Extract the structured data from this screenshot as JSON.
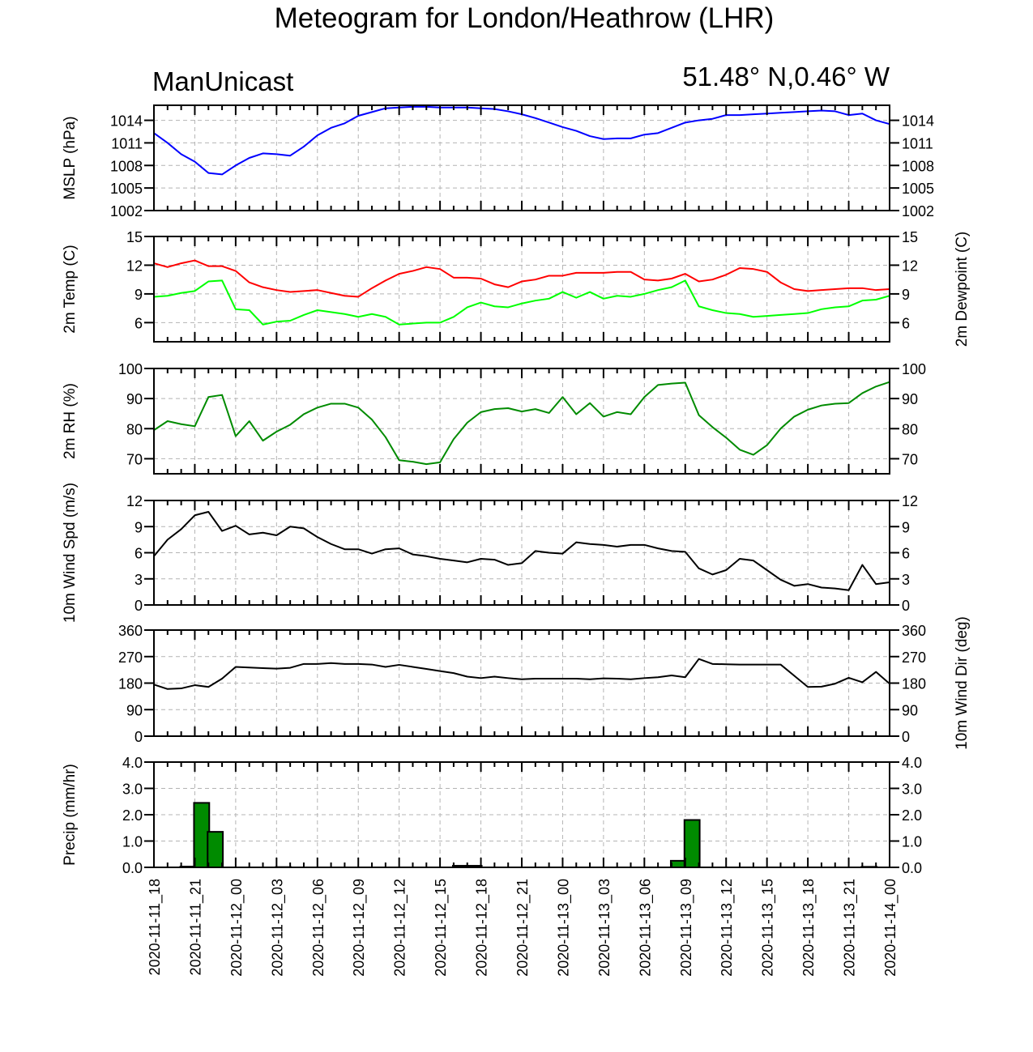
{
  "title": "Meteogram for London/Heathrow (LHR)",
  "left_subtitle": "ManUnicast",
  "right_subtitle": "51.48° N,0.46° W",
  "x_tick_labels": [
    "2020-11-11_18",
    "2020-11-11_21",
    "2020-11-12_00",
    "2020-11-12_03",
    "2020-11-12_06",
    "2020-11-12_09",
    "2020-11-12_12",
    "2020-11-12_15",
    "2020-11-12_18",
    "2020-11-12_21",
    "2020-11-13_00",
    "2020-11-13_03",
    "2020-11-13_06",
    "2020-11-13_09",
    "2020-11-13_12",
    "2020-11-13_15",
    "2020-11-13_18",
    "2020-11-13_21",
    "2020-11-14_00"
  ],
  "colors": {
    "mslp": "#0000ff",
    "temp": "#ff0000",
    "dewpoint": "#00ff00",
    "rh": "#008b00",
    "wind": "#000000",
    "precip": "#008b00"
  },
  "chart_data": [
    {
      "type": "line",
      "ylabel": "MSLP (hPa)",
      "ylim": [
        1002,
        1016
      ],
      "yticks": [
        1002,
        1005,
        1008,
        1011,
        1014
      ],
      "grid": true,
      "x_hours": [
        0,
        1,
        2,
        3,
        4,
        5,
        6,
        7,
        8,
        9,
        10,
        11,
        12,
        13,
        14,
        15,
        16,
        17,
        18,
        19,
        20,
        21,
        22,
        23,
        24,
        25,
        26,
        27,
        28,
        29,
        30,
        31,
        32,
        33,
        34,
        35,
        36,
        37,
        38,
        39,
        40,
        41,
        42,
        43,
        44,
        45,
        46,
        47,
        48,
        49,
        50,
        51,
        52,
        53,
        54
      ],
      "series": [
        {
          "values": [
            1012.3,
            1011.0,
            1009.5,
            1008.5,
            1007.0,
            1006.8,
            1008.0,
            1009.0,
            1009.6,
            1009.5,
            1009.3,
            1010.5,
            1012.0,
            1013.0,
            1013.6,
            1014.6,
            1015.1,
            1015.6,
            1015.7,
            1015.8,
            1015.8,
            1015.7,
            1015.7,
            1015.7,
            1015.6,
            1015.5,
            1015.2,
            1014.8,
            1014.3,
            1013.7,
            1013.1,
            1012.6,
            1011.9,
            1011.5,
            1011.6,
            1011.6,
            1012.1,
            1012.3,
            1013.0,
            1013.7,
            1014.0,
            1014.2,
            1014.7,
            1014.7,
            1014.8,
            1014.9,
            1015.0,
            1015.1,
            1015.2,
            1015.3,
            1015.2,
            1014.7,
            1014.9,
            1014.0,
            1013.5
          ]
        }
      ]
    },
    {
      "type": "line",
      "ylabel": "2m Temp (C)",
      "ylabel_right": "2m Dewpoint (C)",
      "ylim": [
        4,
        15
      ],
      "yticks": [
        6,
        9,
        12,
        15
      ],
      "grid": true,
      "x_hours": [
        0,
        1,
        2,
        3,
        4,
        5,
        6,
        7,
        8,
        9,
        10,
        11,
        12,
        13,
        14,
        15,
        16,
        17,
        18,
        19,
        20,
        21,
        22,
        23,
        24,
        25,
        26,
        27,
        28,
        29,
        30,
        31,
        32,
        33,
        34,
        35,
        36,
        37,
        38,
        39,
        40,
        41,
        42,
        43,
        44,
        45,
        46,
        47,
        48,
        49,
        50,
        51,
        52,
        53,
        54
      ],
      "series": [
        {
          "name": "2m Temp (C)",
          "values": [
            12.2,
            11.8,
            12.2,
            12.5,
            11.9,
            11.9,
            11.4,
            10.2,
            9.7,
            9.4,
            9.2,
            9.3,
            9.4,
            9.1,
            8.8,
            8.7,
            9.6,
            10.4,
            11.1,
            11.4,
            11.8,
            11.6,
            10.7,
            10.7,
            10.6,
            10.0,
            9.7,
            10.3,
            10.5,
            10.9,
            10.9,
            11.2,
            11.2,
            11.2,
            11.3,
            11.3,
            10.5,
            10.4,
            10.6,
            11.1,
            10.3,
            10.5,
            11.0,
            11.7,
            11.6,
            11.3,
            10.2,
            9.5,
            9.3,
            9.4,
            9.5,
            9.6,
            9.6,
            9.4,
            9.5
          ]
        },
        {
          "name": "2m Dewpoint (C)",
          "values": [
            8.7,
            8.8,
            9.1,
            9.3,
            10.3,
            10.4,
            7.4,
            7.3,
            5.8,
            6.1,
            6.2,
            6.8,
            7.3,
            7.1,
            6.9,
            6.6,
            6.9,
            6.6,
            5.8,
            5.9,
            6.0,
            6.0,
            6.6,
            7.6,
            8.1,
            7.7,
            7.6,
            8.0,
            8.3,
            8.5,
            9.2,
            8.6,
            9.2,
            8.5,
            8.8,
            8.7,
            9.0,
            9.4,
            9.7,
            10.4,
            7.7,
            7.3,
            7.0,
            6.9,
            6.6,
            6.7,
            6.8,
            6.9,
            7.0,
            7.4,
            7.6,
            7.7,
            8.3,
            8.4,
            8.8
          ]
        }
      ]
    },
    {
      "type": "line",
      "ylabel": "2m RH (%)",
      "ylim": [
        65,
        100
      ],
      "yticks": [
        70,
        80,
        90,
        100
      ],
      "grid": true,
      "x_hours": [
        0,
        1,
        2,
        3,
        4,
        5,
        6,
        7,
        8,
        9,
        10,
        11,
        12,
        13,
        14,
        15,
        16,
        17,
        18,
        19,
        20,
        21,
        22,
        23,
        24,
        25,
        26,
        27,
        28,
        29,
        30,
        31,
        32,
        33,
        34,
        35,
        36,
        37,
        38,
        39,
        40,
        41,
        42,
        43,
        44,
        45,
        46,
        47,
        48,
        49,
        50,
        51,
        52,
        53,
        54
      ],
      "series": [
        {
          "values": [
            79.5,
            82.5,
            81.5,
            80.8,
            90.5,
            91.2,
            77.5,
            82.5,
            76.0,
            79.0,
            81.3,
            84.8,
            87.0,
            88.3,
            88.3,
            87.0,
            83.0,
            77.2,
            69.5,
            69.0,
            68.2,
            68.8,
            76.5,
            82.0,
            85.5,
            86.5,
            86.8,
            85.7,
            86.5,
            85.2,
            90.5,
            84.8,
            88.5,
            84.0,
            85.5,
            84.8,
            90.5,
            94.5,
            95.0,
            95.3,
            84.5,
            80.5,
            77.0,
            73.0,
            71.3,
            74.5,
            80.0,
            84.0,
            86.3,
            87.7,
            88.3,
            88.5,
            91.8,
            94.0,
            95.5
          ]
        }
      ]
    },
    {
      "type": "line",
      "ylabel": "10m Wind Spd (m/s)",
      "ylim": [
        0,
        12
      ],
      "yticks": [
        0,
        3,
        6,
        9,
        12
      ],
      "grid": true,
      "x_hours": [
        0,
        1,
        2,
        3,
        4,
        5,
        6,
        7,
        8,
        9,
        10,
        11,
        12,
        13,
        14,
        15,
        16,
        17,
        18,
        19,
        20,
        21,
        22,
        23,
        24,
        25,
        26,
        27,
        28,
        29,
        30,
        31,
        32,
        33,
        34,
        35,
        36,
        37,
        38,
        39,
        40,
        41,
        42,
        43,
        44,
        45,
        46,
        47,
        48,
        49,
        50,
        51,
        52,
        53,
        54
      ],
      "series": [
        {
          "values": [
            5.6,
            7.5,
            8.7,
            10.3,
            10.7,
            8.5,
            9.1,
            8.1,
            8.3,
            8.0,
            9.0,
            8.8,
            7.8,
            7.0,
            6.4,
            6.4,
            5.9,
            6.4,
            6.5,
            5.8,
            5.6,
            5.3,
            5.1,
            4.9,
            5.3,
            5.2,
            4.6,
            4.8,
            6.2,
            6.0,
            5.9,
            7.2,
            7.0,
            6.9,
            6.7,
            6.9,
            6.9,
            6.5,
            6.2,
            6.1,
            4.2,
            3.5,
            4.0,
            5.3,
            5.1,
            4.0,
            2.9,
            2.2,
            2.4,
            2.0,
            1.9,
            1.7,
            4.6,
            2.4,
            2.6
          ]
        }
      ]
    },
    {
      "type": "line",
      "ylabel_right": "10m Wind Dir (deg)",
      "ylim": [
        0,
        360
      ],
      "yticks": [
        0,
        90,
        180,
        270,
        360
      ],
      "grid": true,
      "x_hours": [
        0,
        1,
        2,
        3,
        4,
        5,
        6,
        7,
        8,
        9,
        10,
        11,
        12,
        13,
        14,
        15,
        16,
        17,
        18,
        19,
        20,
        21,
        22,
        23,
        24,
        25,
        26,
        27,
        28,
        29,
        30,
        31,
        32,
        33,
        34,
        35,
        36,
        37,
        38,
        39,
        40,
        41,
        42,
        43,
        44,
        45,
        46,
        47,
        48,
        49,
        50,
        51,
        52,
        53,
        54
      ],
      "series": [
        {
          "values": [
            175,
            160,
            162,
            173,
            167,
            195,
            235,
            233,
            231,
            229,
            232,
            245,
            245,
            248,
            245,
            245,
            243,
            235,
            242,
            235,
            228,
            221,
            214,
            202,
            197,
            202,
            197,
            193,
            195,
            195,
            195,
            195,
            193,
            196,
            195,
            193,
            197,
            200,
            206,
            200,
            262,
            245,
            244,
            243,
            243,
            243,
            243,
            205,
            167,
            168,
            178,
            198,
            183,
            218,
            178
          ]
        }
      ]
    },
    {
      "type": "bar",
      "ylabel": "Precip (mm/hr)",
      "ylim": [
        0,
        4
      ],
      "yticks": [
        0,
        1,
        2,
        3,
        4
      ],
      "ytick_labels": [
        "0.0",
        "1.0",
        "2.0",
        "3.0",
        "4.0"
      ],
      "grid": true,
      "x_hours": [
        2,
        3,
        4,
        9,
        22,
        23,
        38,
        39,
        52
      ],
      "values": [
        0.03,
        2.45,
        1.35,
        0.01,
        0.06,
        0.06,
        0.25,
        1.8,
        0.02
      ]
    }
  ]
}
